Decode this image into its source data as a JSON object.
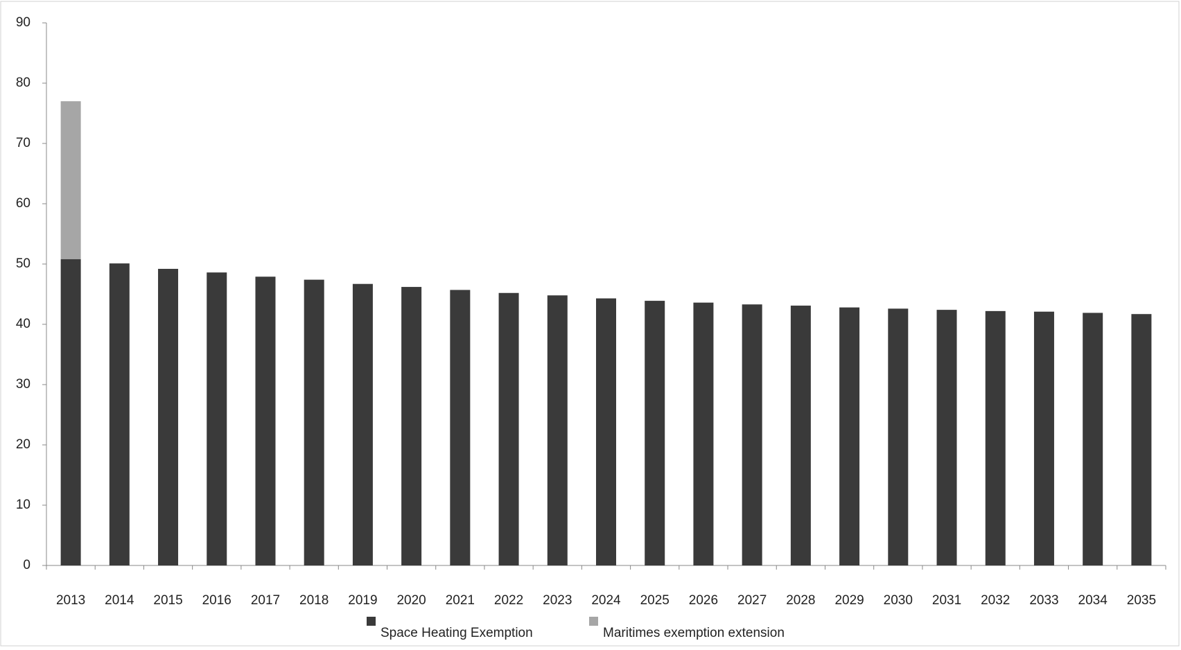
{
  "chart_data": {
    "type": "stacked_bar",
    "categories": [
      "2013",
      "2014",
      "2015",
      "2016",
      "2017",
      "2018",
      "2019",
      "2020",
      "2021",
      "2022",
      "2023",
      "2024",
      "2025",
      "2026",
      "2027",
      "2028",
      "2029",
      "2030",
      "2031",
      "2032",
      "2033",
      "2034",
      "2035"
    ],
    "series": [
      {
        "name": "Space Heating Exemption",
        "color": "#3a3a3a",
        "values": [
          50.8,
          50.1,
          49.2,
          48.6,
          47.9,
          47.4,
          46.7,
          46.2,
          45.7,
          45.2,
          44.8,
          44.3,
          43.9,
          43.6,
          43.3,
          43.1,
          42.8,
          42.6,
          42.4,
          42.2,
          42.1,
          41.9,
          41.7
        ]
      },
      {
        "name": "Maritimes exemption extension",
        "color": "#a6a6a6",
        "values": [
          26.2,
          null,
          null,
          null,
          null,
          null,
          null,
          null,
          null,
          null,
          null,
          null,
          null,
          null,
          null,
          null,
          null,
          null,
          null,
          null,
          null,
          null,
          null
        ]
      }
    ],
    "ylim": [
      0,
      90
    ],
    "yticks": [
      0,
      10,
      20,
      30,
      40,
      50,
      60,
      70,
      80,
      90
    ],
    "legend": "bottom"
  }
}
